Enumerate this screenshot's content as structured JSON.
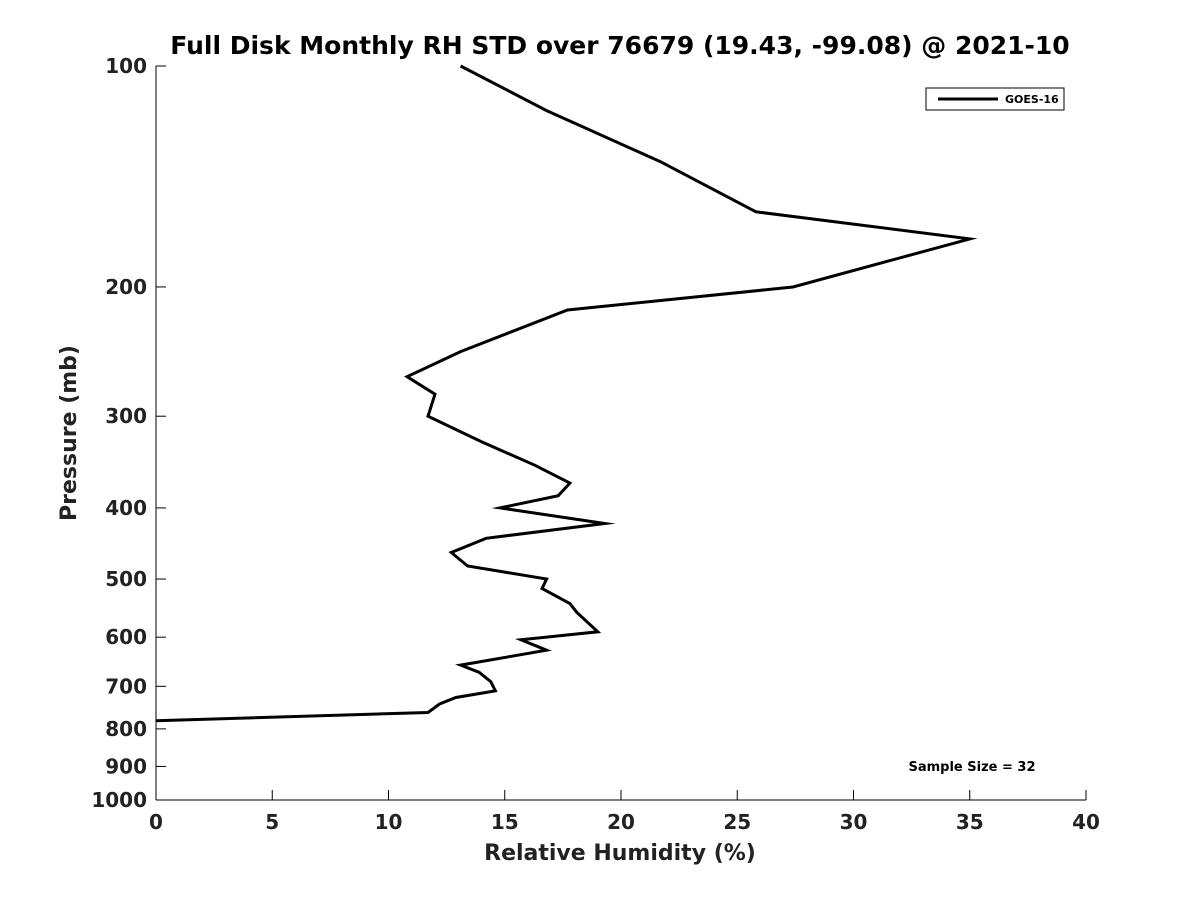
{
  "chart_data": {
    "type": "line",
    "title": "Full Disk Monthly RH STD over 76679 (19.43, -99.08) @ 2021-10",
    "xlabel": "Relative Humidity (%)",
    "ylabel": "Pressure (mb)",
    "xlim": [
      0,
      40
    ],
    "ylim": [
      1000,
      100
    ],
    "yscale": "log",
    "y_reversed": true,
    "xticks": [
      0,
      5,
      10,
      15,
      20,
      25,
      30,
      35,
      40
    ],
    "xtick_labels": [
      "0",
      "5",
      "10",
      "15",
      "20",
      "25",
      "30",
      "35",
      "40"
    ],
    "yticks": [
      100,
      200,
      300,
      400,
      500,
      600,
      700,
      800,
      900,
      1000
    ],
    "ytick_labels": [
      "100",
      "200",
      "300",
      "400",
      "500",
      "600",
      "700",
      "800",
      "900",
      "1000"
    ],
    "grid": false,
    "legend_position": "top-right",
    "annotation": "Sample Size = 32",
    "series": [
      {
        "name": "GOES-16",
        "color": "#000000",
        "x": [
          13.1,
          16.8,
          21.7,
          25.8,
          35.0,
          27.4,
          17.7,
          13.1,
          10.8,
          12.0,
          11.7,
          14.0,
          16.3,
          17.8,
          17.3,
          14.8,
          19.3,
          14.2,
          12.7,
          13.4,
          16.8,
          16.6,
          17.8,
          18.1,
          19.0,
          15.7,
          16.8,
          13.1,
          13.9,
          14.4,
          14.6,
          12.9,
          12.2,
          11.7,
          0.0
        ],
        "y": [
          100,
          115,
          135,
          158,
          172,
          200,
          215,
          245,
          265,
          280,
          300,
          325,
          350,
          370,
          385,
          400,
          420,
          440,
          460,
          480,
          500,
          515,
          540,
          555,
          590,
          605,
          625,
          655,
          670,
          690,
          710,
          725,
          740,
          760,
          780
        ]
      }
    ]
  }
}
